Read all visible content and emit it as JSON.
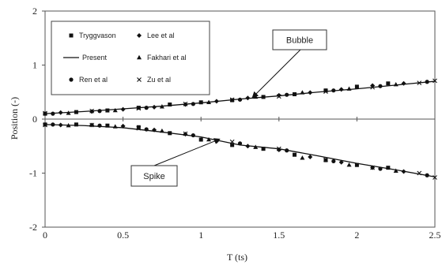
{
  "chart_data": {
    "type": "scatter",
    "title": "",
    "xlabel": "T (ts)",
    "ylabel": "Position (-)",
    "xlim": [
      0,
      2.5
    ],
    "ylim": [
      -2,
      2
    ],
    "xticks": [
      "0",
      "0.5",
      "1",
      "1.5",
      "2",
      "2.5"
    ],
    "yticks": [
      "2",
      "1",
      "0",
      "-1",
      "-2"
    ],
    "grid": false,
    "legend_position": "top-left",
    "legend": [
      {
        "name": "Tryggvason",
        "marker": "square"
      },
      {
        "name": "Lee et al",
        "marker": "diamond"
      },
      {
        "name": "Present",
        "marker": "line"
      },
      {
        "name": "Fakhari et al",
        "marker": "triangle"
      },
      {
        "name": "Ren et al",
        "marker": "circle"
      },
      {
        "name": "Zu et al",
        "marker": "x"
      }
    ],
    "present": {
      "bubble": {
        "x": [
          0,
          0.25,
          0.5,
          0.75,
          1.0,
          1.25,
          1.5,
          1.75,
          2.0,
          2.25,
          2.5
        ],
        "y": [
          0.1,
          0.14,
          0.19,
          0.24,
          0.3,
          0.37,
          0.43,
          0.5,
          0.56,
          0.63,
          0.7
        ]
      },
      "spike": {
        "x": [
          0,
          0.25,
          0.5,
          0.75,
          1.0,
          1.25,
          1.5,
          1.75,
          2.0,
          2.25,
          2.5
        ],
        "y": [
          -0.1,
          -0.12,
          -0.16,
          -0.24,
          -0.33,
          -0.48,
          -0.55,
          -0.68,
          -0.82,
          -0.94,
          -1.07
        ]
      }
    },
    "series": [
      {
        "name": "Tryggvason",
        "marker": "square",
        "bubble": {
          "x": [
            0,
            0.2,
            0.4,
            0.6,
            0.8,
            1.0,
            1.2,
            1.4,
            1.6,
            1.8,
            2.0,
            2.2
          ],
          "y": [
            0.1,
            0.13,
            0.16,
            0.21,
            0.27,
            0.31,
            0.35,
            0.41,
            0.46,
            0.53,
            0.6,
            0.66
          ]
        },
        "spike": {
          "x": [
            0,
            0.2,
            0.4,
            0.6,
            0.8,
            1.0,
            1.2,
            1.4,
            1.6,
            1.8,
            2.0,
            2.2
          ],
          "y": [
            -0.1,
            -0.1,
            -0.12,
            -0.15,
            -0.26,
            -0.38,
            -0.48,
            -0.55,
            -0.66,
            -0.76,
            -0.85,
            -0.9
          ]
        }
      },
      {
        "name": "Lee et al",
        "marker": "diamond",
        "bubble": {
          "x": [
            0.1,
            0.3,
            0.5,
            0.7,
            0.9,
            1.1,
            1.3,
            1.5,
            1.7,
            1.9,
            2.1,
            2.3
          ],
          "y": [
            0.12,
            0.14,
            0.18,
            0.22,
            0.27,
            0.33,
            0.39,
            0.44,
            0.49,
            0.55,
            0.62,
            0.66
          ]
        },
        "spike": {
          "x": [
            0.1,
            0.3,
            0.5,
            0.7,
            0.9,
            1.1,
            1.3,
            1.5,
            1.7,
            1.9,
            2.1,
            2.3
          ],
          "y": [
            -0.11,
            -0.11,
            -0.13,
            -0.2,
            -0.28,
            -0.41,
            -0.5,
            -0.57,
            -0.7,
            -0.8,
            -0.9,
            -0.97
          ]
        }
      },
      {
        "name": "Fakhari et al",
        "marker": "triangle",
        "bubble": {
          "x": [
            0.15,
            0.45,
            0.75,
            1.05,
            1.35,
            1.65,
            1.95,
            2.25
          ],
          "y": [
            0.11,
            0.16,
            0.23,
            0.31,
            0.41,
            0.49,
            0.56,
            0.64
          ]
        },
        "spike": {
          "x": [
            0.15,
            0.45,
            0.75,
            1.05,
            1.35,
            1.65,
            1.95,
            2.25
          ],
          "y": [
            -0.12,
            -0.14,
            -0.22,
            -0.38,
            -0.52,
            -0.72,
            -0.85,
            -0.96
          ]
        }
      },
      {
        "name": "Ren et al",
        "marker": "circle",
        "bubble": {
          "x": [
            0.05,
            0.35,
            0.65,
            0.95,
            1.25,
            1.55,
            1.85,
            2.15,
            2.45
          ],
          "y": [
            0.1,
            0.15,
            0.21,
            0.28,
            0.36,
            0.45,
            0.53,
            0.61,
            0.69
          ]
        },
        "spike": {
          "x": [
            0.05,
            0.35,
            0.65,
            0.95,
            1.25,
            1.55,
            1.85,
            2.15,
            2.45
          ],
          "y": [
            -0.1,
            -0.12,
            -0.19,
            -0.3,
            -0.45,
            -0.58,
            -0.78,
            -0.92,
            -1.04
          ]
        }
      },
      {
        "name": "Zu et al",
        "marker": "x",
        "bubble": {
          "x": [
            0,
            0.3,
            0.6,
            0.9,
            1.2,
            1.5,
            1.8,
            2.1,
            2.4,
            2.5
          ],
          "y": [
            0.11,
            0.15,
            0.2,
            0.28,
            0.36,
            0.42,
            0.51,
            0.59,
            0.67,
            0.71
          ]
        },
        "spike": {
          "x": [
            0,
            0.3,
            0.6,
            0.9,
            1.2,
            1.5,
            1.8,
            2.1,
            2.4,
            2.5
          ],
          "y": [
            -0.11,
            -0.11,
            -0.17,
            -0.27,
            -0.42,
            -0.55,
            -0.75,
            -0.9,
            -1.0,
            -1.08
          ]
        }
      }
    ],
    "annotations": [
      {
        "text": "Bubble",
        "points_to": {
          "x": 1.33,
          "y": 0.4
        }
      },
      {
        "text": "Spike",
        "points_to": {
          "x": 1.12,
          "y": -0.37
        }
      }
    ]
  }
}
